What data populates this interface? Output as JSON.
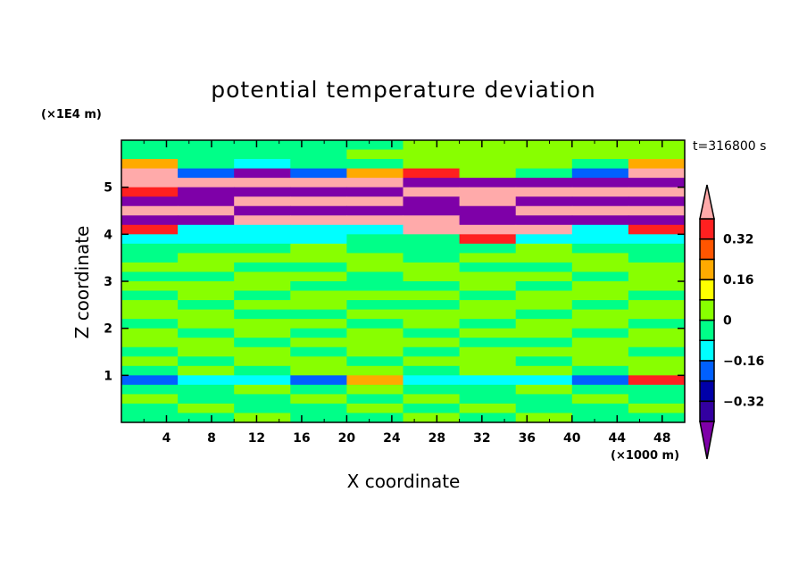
{
  "chart_data": {
    "type": "heatmap",
    "title": "potential temperature deviation",
    "xlabel": "X coordinate",
    "ylabel": "Z coordinate",
    "x_unit_label": "(×1000 m)",
    "y_unit_label": "(×1E4 m)",
    "time_label": "t=316800 s",
    "xlim": [
      0,
      50
    ],
    "ylim": [
      0,
      6
    ],
    "x_ticks": [
      4,
      8,
      12,
      16,
      20,
      24,
      28,
      32,
      36,
      40,
      44,
      48
    ],
    "y_ticks": [
      1,
      2,
      3,
      4,
      5
    ],
    "colorbar": {
      "levels": [
        -0.4,
        -0.32,
        -0.24,
        -0.16,
        -0.08,
        0,
        0.08,
        0.16,
        0.24,
        0.32,
        0.4
      ],
      "colors": [
        "#7e00a8",
        "#3300a0",
        "#0000a8",
        "#0060ff",
        "#00ffff",
        "#00ff88",
        "#88ff00",
        "#ffff00",
        "#ffaa00",
        "#ff5500",
        "#ff2020",
        "#ffaaaa"
      ],
      "tick_labels": [
        {
          "value": 0.32,
          "label": "0.32"
        },
        {
          "value": 0.16,
          "label": "0.16"
        },
        {
          "value": 0,
          "label": "0"
        },
        {
          "value": -0.16,
          "label": "−0.16"
        },
        {
          "value": -0.32,
          "label": "−0.32"
        }
      ]
    },
    "grid_x": [
      2.5,
      7.5,
      12.5,
      17.5,
      22.5,
      27.5,
      32.5,
      37.5,
      42.5,
      47.5
    ],
    "grid_z": [
      5.9,
      5.7,
      5.5,
      5.3,
      5.1,
      4.9,
      4.7,
      4.5,
      4.3,
      4.1,
      3.9,
      3.7,
      3.5,
      3.3,
      3.1,
      2.9,
      2.7,
      2.5,
      2.3,
      2.1,
      1.9,
      1.7,
      1.5,
      1.3,
      1.1,
      0.9,
      0.7,
      0.5,
      0.3,
      0.1
    ],
    "values": [
      [
        -0.04,
        -0.04,
        -0.04,
        -0.04,
        -0.04,
        0.04,
        0.04,
        0.04,
        0.04,
        0.04
      ],
      [
        -0.04,
        -0.04,
        -0.04,
        -0.04,
        0.04,
        0.04,
        0.04,
        0.04,
        0.04,
        0.04
      ],
      [
        0.2,
        -0.04,
        -0.12,
        -0.04,
        -0.04,
        0.04,
        0.04,
        0.04,
        -0.04,
        0.2
      ],
      [
        0.5,
        -0.2,
        -0.45,
        -0.2,
        0.2,
        0.36,
        0.04,
        -0.04,
        -0.2,
        0.5
      ],
      [
        0.5,
        0.5,
        0.5,
        0.5,
        0.5,
        -0.5,
        -0.5,
        -0.5,
        -0.5,
        -0.5
      ],
      [
        0.36,
        -0.5,
        -0.5,
        -0.5,
        -0.5,
        0.5,
        0.5,
        0.5,
        0.5,
        0.5
      ],
      [
        -0.5,
        -0.5,
        0.5,
        0.5,
        0.5,
        -0.5,
        0.5,
        -0.5,
        -0.5,
        -0.5
      ],
      [
        0.5,
        0.5,
        -0.5,
        -0.5,
        -0.5,
        -0.5,
        -0.5,
        0.5,
        0.5,
        0.5
      ],
      [
        -0.5,
        -0.5,
        0.5,
        0.5,
        0.5,
        0.5,
        -0.5,
        -0.5,
        -0.5,
        -0.5
      ],
      [
        0.36,
        -0.12,
        -0.12,
        -0.12,
        -0.12,
        0.5,
        0.5,
        0.5,
        -0.12,
        0.36
      ],
      [
        -0.12,
        -0.12,
        -0.12,
        -0.12,
        -0.04,
        -0.04,
        0.36,
        -0.12,
        -0.12,
        -0.12
      ],
      [
        -0.04,
        -0.04,
        -0.04,
        0.04,
        -0.04,
        -0.04,
        -0.04,
        0.04,
        -0.04,
        -0.04
      ],
      [
        -0.04,
        0.04,
        0.04,
        0.04,
        0.04,
        -0.04,
        0.04,
        0.04,
        0.04,
        -0.04
      ],
      [
        0.04,
        0.04,
        -0.04,
        -0.04,
        0.04,
        0.04,
        -0.04,
        -0.04,
        0.04,
        0.04
      ],
      [
        -0.04,
        -0.04,
        0.04,
        0.04,
        -0.04,
        0.04,
        0.04,
        0.04,
        -0.04,
        0.04
      ],
      [
        0.04,
        0.04,
        0.04,
        -0.04,
        -0.04,
        -0.04,
        0.04,
        -0.04,
        0.04,
        0.04
      ],
      [
        -0.04,
        0.04,
        -0.04,
        0.04,
        0.04,
        0.04,
        -0.04,
        0.04,
        0.04,
        -0.04
      ],
      [
        0.04,
        -0.04,
        0.04,
        0.04,
        -0.04,
        -0.04,
        0.04,
        0.04,
        -0.04,
        0.04
      ],
      [
        0.04,
        0.04,
        -0.04,
        -0.04,
        0.04,
        0.04,
        0.04,
        -0.04,
        0.04,
        0.04
      ],
      [
        -0.04,
        0.04,
        0.04,
        0.04,
        -0.04,
        0.04,
        -0.04,
        0.04,
        0.04,
        -0.04
      ],
      [
        0.04,
        -0.04,
        0.04,
        -0.04,
        0.04,
        -0.04,
        0.04,
        0.04,
        -0.04,
        0.04
      ],
      [
        0.04,
        0.04,
        -0.04,
        0.04,
        0.04,
        0.04,
        -0.04,
        -0.04,
        0.04,
        0.04
      ],
      [
        -0.04,
        0.04,
        0.04,
        -0.04,
        0.04,
        -0.04,
        0.04,
        0.04,
        0.04,
        -0.04
      ],
      [
        0.04,
        -0.04,
        0.04,
        0.04,
        -0.04,
        0.04,
        0.04,
        -0.04,
        0.04,
        0.04
      ],
      [
        -0.04,
        0.04,
        -0.04,
        0.04,
        0.04,
        -0.04,
        0.04,
        0.04,
        -0.04,
        0.04
      ],
      [
        -0.2,
        -0.12,
        -0.12,
        -0.2,
        0.2,
        -0.12,
        -0.12,
        -0.12,
        -0.2,
        0.36
      ],
      [
        -0.04,
        -0.04,
        0.04,
        -0.04,
        0.04,
        -0.04,
        -0.04,
        0.04,
        -0.04,
        -0.04
      ],
      [
        0.04,
        -0.04,
        -0.04,
        0.04,
        -0.04,
        0.04,
        -0.04,
        -0.04,
        0.04,
        -0.04
      ],
      [
        -0.04,
        0.04,
        -0.04,
        -0.04,
        0.04,
        -0.04,
        0.04,
        -0.04,
        -0.04,
        0.04
      ],
      [
        -0.04,
        -0.04,
        0.04,
        -0.04,
        -0.04,
        0.04,
        -0.04,
        0.04,
        -0.04,
        -0.04
      ]
    ]
  }
}
